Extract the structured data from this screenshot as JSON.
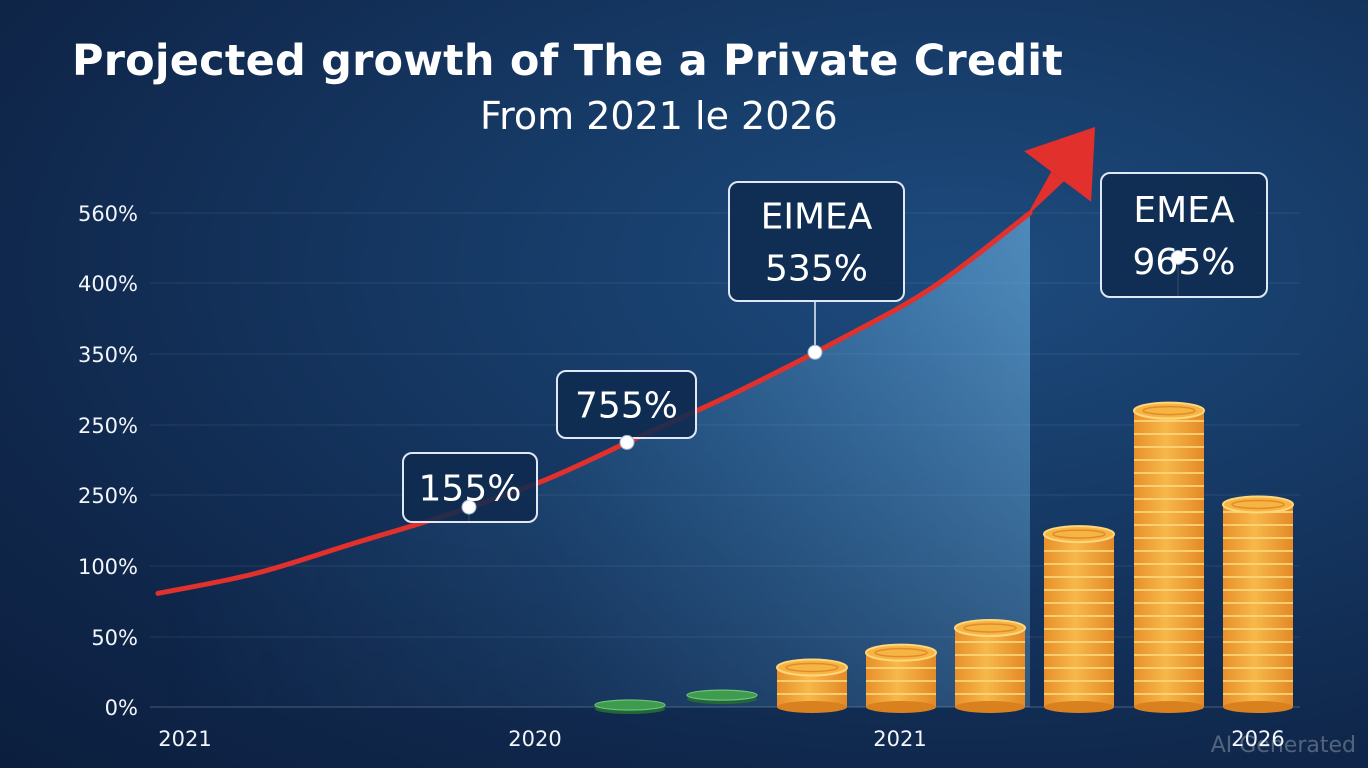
{
  "header": {
    "title": "Projected growth of The a Private Credit",
    "subtitle": "From 2021 le 2026"
  },
  "watermark": "AI Generated",
  "colors": {
    "background": "#12305a",
    "curve": "#e2302c",
    "area": "#4f9ad0",
    "coin": "#f2a93b",
    "coin_edge": "#ffd67a",
    "green_disc": "#3f9b4e",
    "callout_border": "#dfe8f4"
  },
  "chart_data": {
    "type": "area",
    "title": "Projected growth of The a Private Credit",
    "subtitle": "From 2021 le 2026",
    "y_tick_labels": [
      "0%",
      "50%",
      "100%",
      "250%",
      "250%",
      "350%",
      "400%",
      "560%"
    ],
    "x_tick_labels": [
      "2021",
      "2020",
      "2021",
      "2026"
    ],
    "grid": true,
    "curve_levels": [
      0.23,
      0.27,
      0.33,
      0.39,
      0.46,
      0.55,
      0.64,
      0.74,
      0.85,
      1.0
    ],
    "callouts": [
      {
        "lines": [
          "155%"
        ],
        "point_level": 0.32
      },
      {
        "lines": [
          "755%"
        ],
        "point_level": 0.53
      },
      {
        "lines": [
          "EIMEA",
          "535%"
        ],
        "point_level": 0.69
      },
      {
        "lines": [
          "EMEA",
          "965%"
        ],
        "point_level": 0.91
      }
    ],
    "coin_stacks": [
      {
        "kind": "disc",
        "level": 0.0
      },
      {
        "kind": "disc",
        "level": 0.02
      },
      {
        "kind": "stack",
        "level": 0.08
      },
      {
        "kind": "stack",
        "level": 0.11
      },
      {
        "kind": "stack",
        "level": 0.16
      },
      {
        "kind": "stack",
        "level": 0.35
      },
      {
        "kind": "stack",
        "level": 0.6
      },
      {
        "kind": "stack",
        "level": 0.41
      }
    ]
  }
}
